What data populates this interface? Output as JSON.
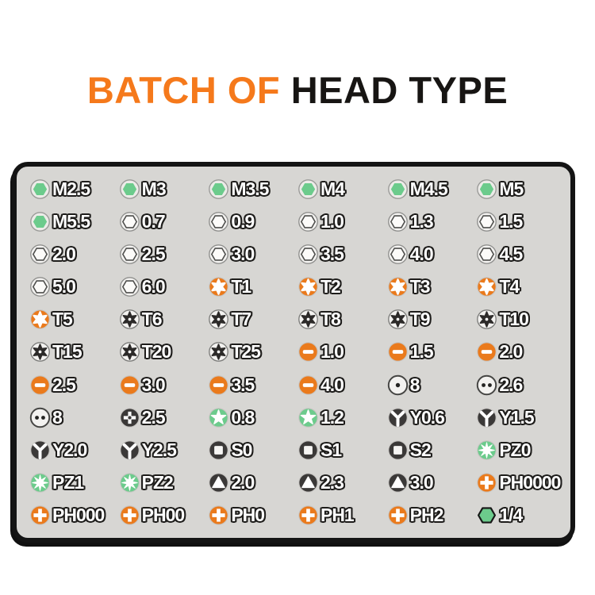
{
  "title": {
    "part1": "BATCH OF ",
    "part2": "HEAD TYPE"
  },
  "colors": {
    "title_orange": "#F5791B",
    "title_dark": "#171513",
    "panel_bg": "#d7d6d3",
    "panel_border": "#141414",
    "green": "#6CCB8C",
    "orange": "#EA7A1C",
    "dark": "#3B3938",
    "icon_white": "#F3F2F0",
    "icon_ring": "#8b8b89",
    "label_fill": "#ffffff",
    "label_outline": "#1e1d1b"
  },
  "panel": {
    "columns": 6,
    "rows": 11,
    "items": [
      {
        "label": "M2.5",
        "icon": "hex-green"
      },
      {
        "label": "M3",
        "icon": "hex-green"
      },
      {
        "label": "M3.5",
        "icon": "hex-green"
      },
      {
        "label": "M4",
        "icon": "hex-green"
      },
      {
        "label": "M4.5",
        "icon": "hex-green"
      },
      {
        "label": "M5",
        "icon": "hex-green"
      },
      {
        "label": "M5.5",
        "icon": "hex-green"
      },
      {
        "label": "0.7",
        "icon": "hex-white"
      },
      {
        "label": "0.9",
        "icon": "hex-white"
      },
      {
        "label": "1.0",
        "icon": "hex-white"
      },
      {
        "label": "1.3",
        "icon": "hex-white"
      },
      {
        "label": "1.5",
        "icon": "hex-white"
      },
      {
        "label": "2.0",
        "icon": "hex-white"
      },
      {
        "label": "2.5",
        "icon": "hex-white"
      },
      {
        "label": "3.0",
        "icon": "hex-white"
      },
      {
        "label": "3.5",
        "icon": "hex-white"
      },
      {
        "label": "4.0",
        "icon": "hex-white"
      },
      {
        "label": "4.5",
        "icon": "hex-white"
      },
      {
        "label": "5.0",
        "icon": "hex-white"
      },
      {
        "label": "6.0",
        "icon": "hex-white"
      },
      {
        "label": "T1",
        "icon": "torx-orange"
      },
      {
        "label": "T2",
        "icon": "torx-orange"
      },
      {
        "label": "T3",
        "icon": "torx-orange"
      },
      {
        "label": "T4",
        "icon": "torx-orange"
      },
      {
        "label": "T5",
        "icon": "torx-orange"
      },
      {
        "label": "T6",
        "icon": "torx-black"
      },
      {
        "label": "T7",
        "icon": "torx-black"
      },
      {
        "label": "T8",
        "icon": "torx-black"
      },
      {
        "label": "T9",
        "icon": "torx-black"
      },
      {
        "label": "T10",
        "icon": "torx-black"
      },
      {
        "label": "T15",
        "icon": "torx-black"
      },
      {
        "label": "T20",
        "icon": "torx-black"
      },
      {
        "label": "T25",
        "icon": "torx-black"
      },
      {
        "label": "1.0",
        "icon": "slot-orange"
      },
      {
        "label": "1.5",
        "icon": "slot-orange"
      },
      {
        "label": "2.0",
        "icon": "slot-orange"
      },
      {
        "label": "2.5",
        "icon": "slot-orange"
      },
      {
        "label": "3.0",
        "icon": "slot-orange"
      },
      {
        "label": "3.5",
        "icon": "slot-orange"
      },
      {
        "label": "4.0",
        "icon": "slot-orange"
      },
      {
        "label": "8",
        "icon": "dot-single"
      },
      {
        "label": "2.6",
        "icon": "dot-double"
      },
      {
        "label": "8",
        "icon": "dot-double"
      },
      {
        "label": "2.5",
        "icon": "cross-dark"
      },
      {
        "label": "0.8",
        "icon": "star5-green"
      },
      {
        "label": "1.2",
        "icon": "star5-green"
      },
      {
        "label": "Y0.6",
        "icon": "triwing-dark"
      },
      {
        "label": "Y1.5",
        "icon": "triwing-dark"
      },
      {
        "label": "Y2.0",
        "icon": "triwing-dark"
      },
      {
        "label": "Y2.5",
        "icon": "triwing-dark"
      },
      {
        "label": "S0",
        "icon": "square-dark"
      },
      {
        "label": "S1",
        "icon": "square-dark"
      },
      {
        "label": "S2",
        "icon": "square-dark"
      },
      {
        "label": "PZ0",
        "icon": "pozi-green"
      },
      {
        "label": "PZ1",
        "icon": "pozi-green"
      },
      {
        "label": "PZ2",
        "icon": "pozi-green"
      },
      {
        "label": "2.0",
        "icon": "triangle-dark"
      },
      {
        "label": "2.3",
        "icon": "triangle-dark"
      },
      {
        "label": "3.0",
        "icon": "triangle-dark"
      },
      {
        "label": "PH0000",
        "icon": "phillips-orange"
      },
      {
        "label": "PH000",
        "icon": "phillips-orange"
      },
      {
        "label": "PH00",
        "icon": "phillips-orange"
      },
      {
        "label": "PH0",
        "icon": "phillips-orange"
      },
      {
        "label": "PH1",
        "icon": "phillips-orange"
      },
      {
        "label": "PH2",
        "icon": "phillips-orange"
      },
      {
        "label": "1/4",
        "icon": "hex-quarter-green"
      }
    ]
  }
}
